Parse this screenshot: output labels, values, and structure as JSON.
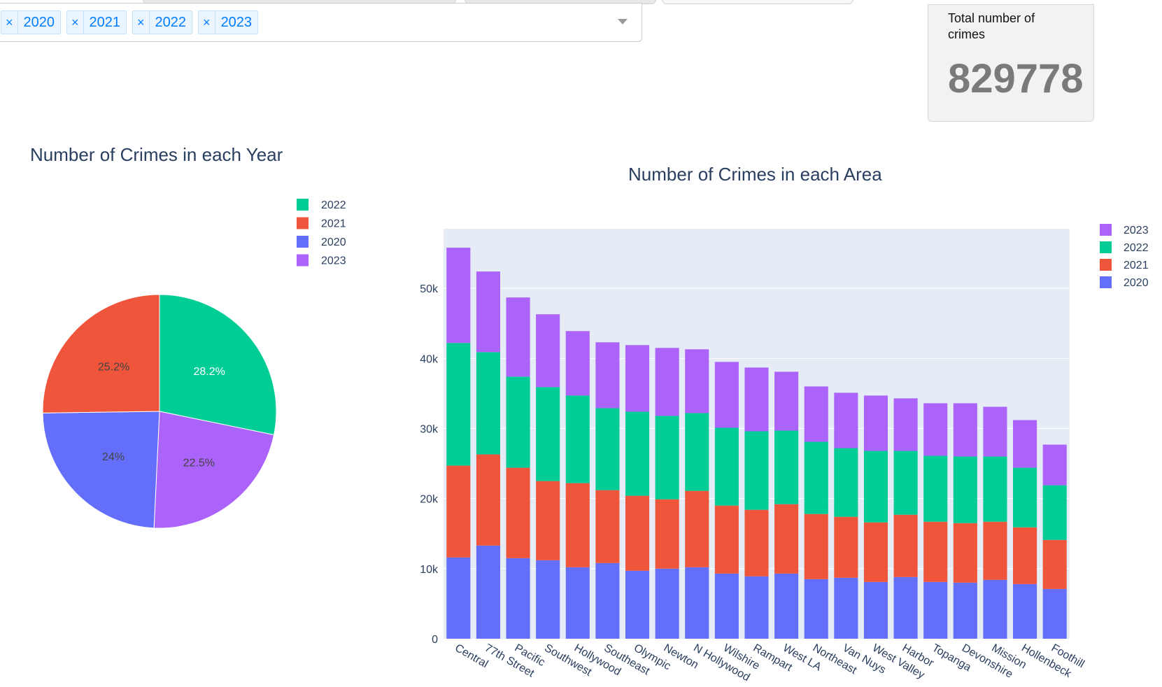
{
  "filter": {
    "selected_years": [
      "2020",
      "2021",
      "2022",
      "2023"
    ],
    "remove_glyph": "×"
  },
  "total_card": {
    "label": "Total number of crimes",
    "value": "829778"
  },
  "colors": {
    "2020": "#636efa",
    "2021": "#ef553b",
    "2022": "#00cc96",
    "2023": "#ab63fa",
    "plot_bg": "#e5ecf6"
  },
  "chart_data": [
    {
      "type": "pie",
      "title": "Number of Crimes in each Year",
      "slices": [
        {
          "label": "2022",
          "percent": 28.2,
          "percent_text": "28.2%"
        },
        {
          "label": "2023",
          "percent": 22.5,
          "percent_text": "22.5%"
        },
        {
          "label": "2020",
          "percent": 24.0,
          "percent_text": "24%"
        },
        {
          "label": "2021",
          "percent": 25.2,
          "percent_text": "25.2%"
        }
      ],
      "legend": [
        "2022",
        "2021",
        "2020",
        "2023"
      ]
    },
    {
      "type": "bar",
      "stacked": true,
      "title": "Number of Crimes in each Area",
      "categories": [
        "Central",
        "77th Street",
        "Pacific",
        "Southwest",
        "Hollywood",
        "Southeast",
        "Olympic",
        "Newton",
        "N Hollywood",
        "Wilshire",
        "Rampart",
        "West LA",
        "Northeast",
        "Van Nuys",
        "West Valley",
        "Harbor",
        "Topanga",
        "Devonshire",
        "Mission",
        "Hollenbeck",
        "Foothill"
      ],
      "series": [
        {
          "name": "2020",
          "values": [
            11600,
            13300,
            11500,
            11200,
            10200,
            10800,
            9700,
            10000,
            10200,
            9300,
            8900,
            9300,
            8500,
            8700,
            8100,
            8800,
            8100,
            8000,
            8400,
            7800,
            7100
          ]
        },
        {
          "name": "2021",
          "values": [
            13100,
            13000,
            12900,
            11300,
            12000,
            10400,
            10700,
            9900,
            10900,
            9700,
            9500,
            9900,
            9300,
            8700,
            8500,
            8900,
            8600,
            8500,
            8300,
            8100,
            7000
          ]
        },
        {
          "name": "2022",
          "values": [
            17500,
            14600,
            13000,
            13400,
            12500,
            11700,
            12000,
            11900,
            11100,
            11100,
            11200,
            10500,
            10300,
            9800,
            10200,
            9100,
            9400,
            9500,
            9300,
            8500,
            7800
          ]
        },
        {
          "name": "2023",
          "values": [
            13600,
            11500,
            11300,
            10400,
            9200,
            9400,
            9500,
            9700,
            9100,
            9400,
            9100,
            8400,
            7900,
            7900,
            7900,
            7500,
            7500,
            7600,
            7100,
            6800,
            5800
          ]
        }
      ],
      "y_ticks": [
        "0",
        "10k",
        "20k",
        "30k",
        "40k",
        "50k"
      ],
      "y_tick_values": [
        0,
        10000,
        20000,
        30000,
        40000,
        50000
      ],
      "ylim": [
        0,
        58500
      ],
      "legend": [
        "2023",
        "2022",
        "2021",
        "2020"
      ],
      "grid": true
    }
  ]
}
